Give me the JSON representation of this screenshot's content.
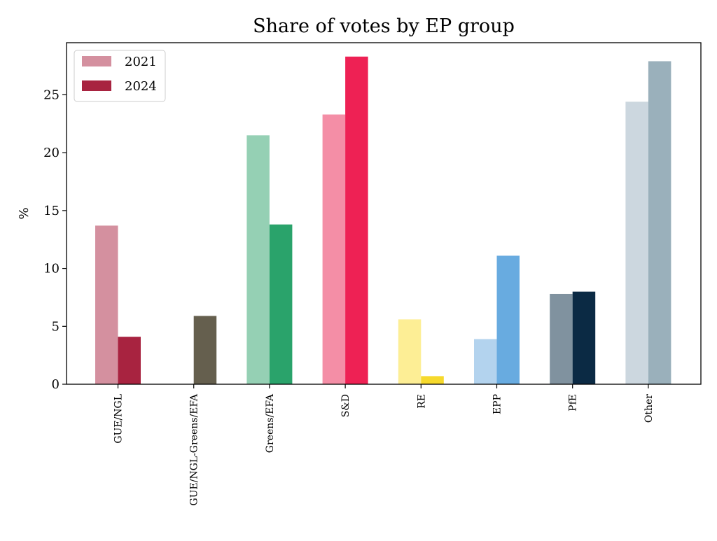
{
  "chart_data": {
    "type": "bar",
    "title": "Share of votes by EP group",
    "xlabel": "",
    "ylabel": "%",
    "ylim": [
      0,
      29.5
    ],
    "yticks": [
      0,
      5,
      10,
      15,
      20,
      25
    ],
    "grid": false,
    "legend_position": "top-left",
    "categories": [
      "GUE/NGL",
      "GUE/NGL-Greens/EFA",
      "Greens/EFA",
      "S&D",
      "RE",
      "EPP",
      "PfE",
      "Other"
    ],
    "series": [
      {
        "name": "2021",
        "values": [
          13.7,
          null,
          21.5,
          23.3,
          5.6,
          3.9,
          7.8,
          24.4
        ]
      },
      {
        "name": "2024",
        "values": [
          4.1,
          5.9,
          13.8,
          28.3,
          0.7,
          11.1,
          8.0,
          27.9
        ]
      }
    ],
    "colors": {
      "2021": [
        "#d4909f",
        null,
        "#95d0b4",
        "#f48ea6",
        "#fdee95",
        "#b3d3ee",
        "#80929f",
        "#ccd7df"
      ],
      "2024": [
        "#a82340",
        "#655f4e",
        "#2aa36b",
        "#ee2154",
        "#f6d92c",
        "#68abe0",
        "#0b2a44",
        "#9ab0bb"
      ]
    },
    "legend_colors": {
      "2021": "#d4909f",
      "2024": "#a82340"
    }
  }
}
